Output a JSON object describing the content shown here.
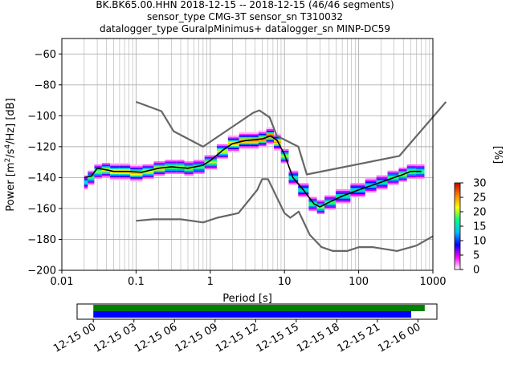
{
  "title": {
    "line1": "BK.BK65.00.HHN   2018-12-15 -- 2018-12-15  (46/46 segments)",
    "line2": "sensor_type CMG-3T sensor_sn T310032",
    "line3": "datalogger_type GuralpMinimus+ datalogger_sn MINP-DC59"
  },
  "chart_data": [
    {
      "type": "heatmap",
      "title": "BK.BK65.00.HHN   2018-12-15 -- 2018-12-15  (46/46 segments)",
      "xlabel": "Period [s]",
      "ylabel_parts": [
        "Power [m",
        "2",
        "/s",
        "4",
        "/Hz] [dB]"
      ],
      "xscale": "log",
      "xlim": [
        0.01,
        1000
      ],
      "ylim": [
        -200,
        -50
      ],
      "grid": true,
      "xticks": [
        {
          "value": 0.01,
          "label": "0.01"
        },
        {
          "value": 0.1,
          "label": "0.1"
        },
        {
          "value": 1,
          "label": "1"
        },
        {
          "value": 10,
          "label": "10"
        },
        {
          "value": 100,
          "label": "100"
        },
        {
          "value": 1000,
          "label": "1000"
        }
      ],
      "yticks": [
        {
          "value": -60,
          "label": "−60"
        },
        {
          "value": -80,
          "label": "−80"
        },
        {
          "value": -100,
          "label": "−100"
        },
        {
          "value": -120,
          "label": "−120"
        },
        {
          "value": -140,
          "label": "−140"
        },
        {
          "value": -160,
          "label": "−160"
        },
        {
          "value": -180,
          "label": "−180"
        },
        {
          "value": -200,
          "label": "−200"
        }
      ],
      "colorbar": {
        "label": "[%]",
        "min": 0,
        "max": 30,
        "ticks": [
          {
            "value": 0,
            "label": "0"
          },
          {
            "value": 5,
            "label": "5"
          },
          {
            "value": 10,
            "label": "10"
          },
          {
            "value": 15,
            "label": "15"
          },
          {
            "value": 20,
            "label": "20"
          },
          {
            "value": 25,
            "label": "25"
          },
          {
            "value": 30,
            "label": "30"
          }
        ],
        "colors": [
          "#ffffff",
          "#ff00ff",
          "#0000ff",
          "#00bfff",
          "#00ff80",
          "#ffff00",
          "#ff8000",
          "#cc0000"
        ]
      },
      "series": [
        {
          "role": "high noise model",
          "color": "#666666",
          "points": [
            [
              0.1,
              -91
            ],
            [
              0.22,
              -97
            ],
            [
              0.32,
              -110
            ],
            [
              0.8,
              -120
            ],
            [
              3.8,
              -98
            ],
            [
              4.6,
              -96.5
            ],
            [
              6.3,
              -101
            ],
            [
              7.9,
              -113
            ],
            [
              15.4,
              -120
            ],
            [
              20,
              -138
            ],
            [
              354,
              -126
            ],
            [
              10000,
              -91
            ]
          ]
        },
        {
          "role": "low noise model",
          "color": "#666666",
          "points": [
            [
              0.1,
              -168
            ],
            [
              0.17,
              -167
            ],
            [
              0.4,
              -167
            ],
            [
              0.8,
              -169
            ],
            [
              1.24,
              -166
            ],
            [
              2.4,
              -163
            ],
            [
              4.3,
              -148
            ],
            [
              5.0,
              -141
            ],
            [
              6.0,
              -141
            ],
            [
              10,
              -163
            ],
            [
              12,
              -166
            ],
            [
              15.6,
              -162
            ],
            [
              21.9,
              -177
            ],
            [
              31.6,
              -185
            ],
            [
              45,
              -187.5
            ],
            [
              70,
              -187.5
            ],
            [
              101,
              -185
            ],
            [
              154,
              -185
            ],
            [
              328,
              -187.5
            ],
            [
              600,
              -184
            ],
            [
              1000,
              -178
            ]
          ]
        },
        {
          "role": "mode",
          "color": "#000000",
          "points": [
            [
              0.02,
              -140
            ],
            [
              0.025,
              -139
            ],
            [
              0.03,
              -134
            ],
            [
              0.04,
              -135
            ],
            [
              0.05,
              -136
            ],
            [
              0.08,
              -136
            ],
            [
              0.12,
              -136.5
            ],
            [
              0.2,
              -134
            ],
            [
              0.3,
              -133
            ],
            [
              0.5,
              -134
            ],
            [
              0.8,
              -132
            ],
            [
              1,
              -129
            ],
            [
              1.5,
              -122
            ],
            [
              2,
              -118
            ],
            [
              3,
              -116
            ],
            [
              5,
              -115
            ],
            [
              6.5,
              -113
            ],
            [
              8,
              -116
            ],
            [
              10,
              -125
            ],
            [
              13,
              -140
            ],
            [
              18,
              -148
            ],
            [
              25,
              -157
            ],
            [
              30,
              -159
            ],
            [
              40,
              -156
            ],
            [
              60,
              -152
            ],
            [
              100,
              -148
            ],
            [
              200,
              -143
            ],
            [
              300,
              -140
            ],
            [
              400,
              -138
            ],
            [
              500,
              -136
            ],
            [
              700,
              -136
            ]
          ]
        }
      ],
      "density": {
        "color_scale_max_percent": 30,
        "points": [
          [
            0.02,
            -143,
            15
          ],
          [
            0.025,
            -140,
            18
          ],
          [
            0.03,
            -136,
            20
          ],
          [
            0.04,
            -135,
            22
          ],
          [
            0.05,
            -136,
            24
          ],
          [
            0.07,
            -136,
            25
          ],
          [
            0.1,
            -137,
            24
          ],
          [
            0.15,
            -136,
            22
          ],
          [
            0.2,
            -134,
            22
          ],
          [
            0.3,
            -133,
            20
          ],
          [
            0.4,
            -133,
            20
          ],
          [
            0.5,
            -134,
            20
          ],
          [
            0.7,
            -133,
            18
          ],
          [
            1,
            -130,
            20
          ],
          [
            1.5,
            -123,
            22
          ],
          [
            2,
            -118,
            24
          ],
          [
            3,
            -116,
            26
          ],
          [
            4,
            -116,
            26
          ],
          [
            5,
            -115,
            27
          ],
          [
            6.5,
            -113,
            28
          ],
          [
            8,
            -117,
            25
          ],
          [
            10,
            -126,
            20
          ],
          [
            13,
            -140,
            16
          ],
          [
            18,
            -148,
            15
          ],
          [
            25,
            -157,
            18
          ],
          [
            30,
            -159,
            20
          ],
          [
            40,
            -156,
            18
          ],
          [
            60,
            -152,
            16
          ],
          [
            100,
            -148,
            15
          ],
          [
            150,
            -145,
            15
          ],
          [
            200,
            -143,
            16
          ],
          [
            300,
            -140,
            18
          ],
          [
            400,
            -138,
            20
          ],
          [
            500,
            -136,
            20
          ],
          [
            700,
            -136,
            18
          ]
        ]
      }
    },
    {
      "type": "timeline",
      "xticks": [
        "12-15 00",
        "12-15 03",
        "12-15 06",
        "12-15 09",
        "12-15 12",
        "12-15 15",
        "12-15 18",
        "12-15 21",
        "12-16 00"
      ],
      "xlim_hours": [
        -1.2,
        25.4
      ],
      "bars": [
        {
          "color": "#008000",
          "start_hour": 0,
          "end_hour": 24.5
        },
        {
          "color": "#0000ff",
          "start_hour": 0,
          "end_hour": 23.5
        }
      ]
    }
  ]
}
